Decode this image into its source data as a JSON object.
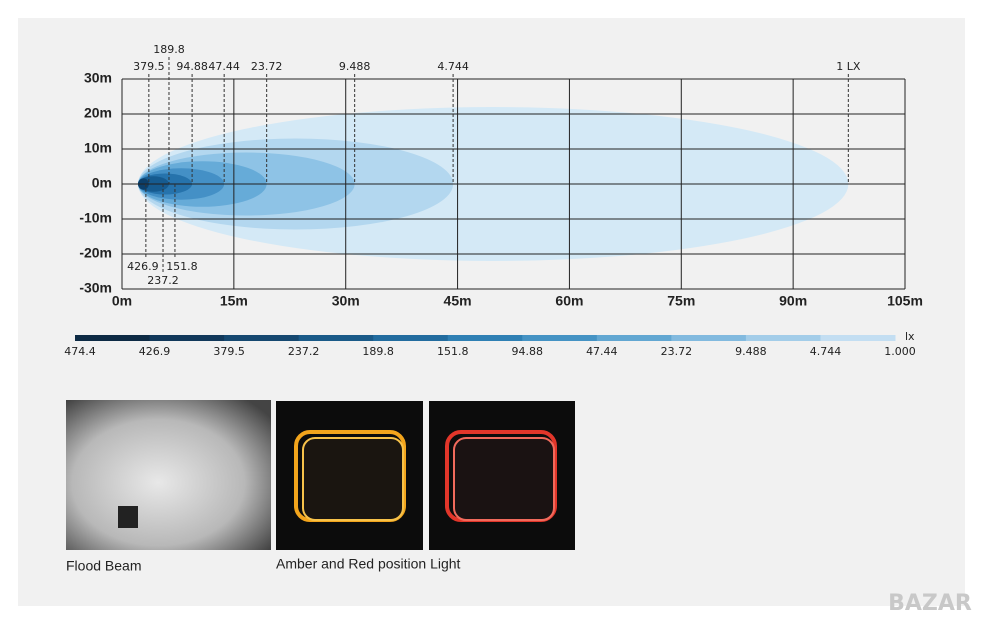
{
  "chart_data": {
    "type": "isolux",
    "xlim": [
      0,
      105
    ],
    "xticks": [
      {
        "value": 0,
        "label": "0m"
      },
      {
        "value": 15,
        "label": "15m"
      },
      {
        "value": 30,
        "label": "30m"
      },
      {
        "value": 45,
        "label": "45m"
      },
      {
        "value": 60,
        "label": "60m"
      },
      {
        "value": 75,
        "label": "75m"
      },
      {
        "value": 90,
        "label": "90m"
      },
      {
        "value": 105,
        "label": "105m"
      }
    ],
    "ylim": [
      -30,
      30
    ],
    "yticks": [
      {
        "value": 30,
        "label": "30m"
      },
      {
        "value": 20,
        "label": "20m"
      },
      {
        "value": 10,
        "label": "10m"
      },
      {
        "value": 0,
        "label": "0m"
      },
      {
        "value": -10,
        "label": "-10m"
      },
      {
        "value": -20,
        "label": "-20m"
      },
      {
        "value": -30,
        "label": "-30m"
      }
    ],
    "grid": true,
    "contours": [
      {
        "label": "1 LX",
        "x": 97.4,
        "halfwidth": 22,
        "color": "#d4e9f6"
      },
      {
        "label": "4.744",
        "x": 44.4,
        "halfwidth": 13,
        "color": "#b3d7ef"
      },
      {
        "label": "9.488",
        "x": 31.2,
        "halfwidth": 9,
        "color": "#8ec3e6"
      },
      {
        "label": "23.72",
        "x": 19.4,
        "halfwidth": 6.5,
        "color": "#66abd8"
      },
      {
        "label": "47.44",
        "x": 13.7,
        "halfwidth": 4.5,
        "color": "#4490c6"
      },
      {
        "label": "94.88",
        "x": 9.4,
        "halfwidth": 3,
        "color": "#2673ac"
      },
      {
        "label": "189.8",
        "x": 6.3,
        "halfwidth": 2.2,
        "color": "#165b90"
      },
      {
        "label": "379.5",
        "x": 3.6,
        "halfwidth": 1.6,
        "color": "#0c3f6a"
      }
    ],
    "bottom_contours": [
      {
        "label": "426.9",
        "x": 3.2
      },
      {
        "label": "237.2",
        "x": 5.5
      },
      {
        "label": "151.8",
        "x": 7.1
      }
    ],
    "colorbar": {
      "unit": "lx",
      "ticks": [
        474.4,
        426.9,
        379.5,
        237.2,
        189.8,
        151.8,
        94.88,
        47.44,
        23.72,
        9.488,
        4.744,
        {
          "value": 1,
          "label": "1.000"
        }
      ],
      "colors": [
        "#0d2a44",
        "#11385a",
        "#154870",
        "#1a5a88",
        "#226c9f",
        "#2f80b4",
        "#4593c4",
        "#62a7d2",
        "#82badf",
        "#a3cde9",
        "#c3def2"
      ]
    }
  },
  "captions": [
    "Flood Beam",
    "Amber and Red position Light"
  ],
  "watermark": "BAZAR"
}
